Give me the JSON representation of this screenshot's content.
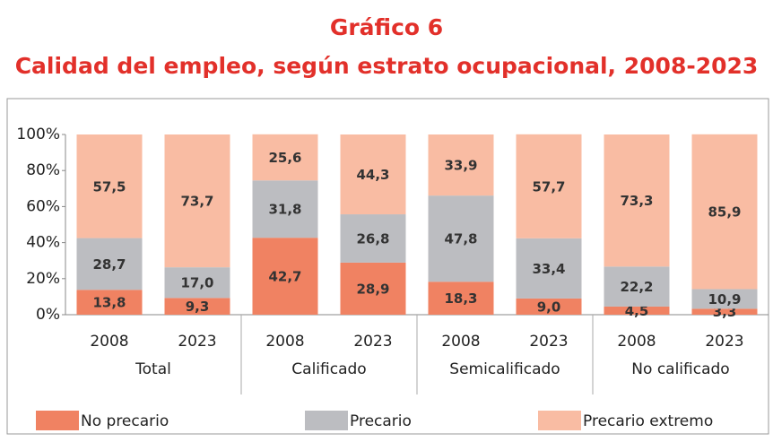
{
  "chart_data": {
    "type": "stacked_bar",
    "title": "Gráfico 6",
    "subtitle": "Calidad del empleo, según estrato ocupacional, 2008-2023",
    "categories": [
      "2008",
      "2023",
      "2008",
      "2023",
      "2008",
      "2023",
      "2008",
      "2023"
    ],
    "groups": [
      "Total",
      "Calificado",
      "Semicalificado",
      "No calificado"
    ],
    "series": [
      {
        "name": "No precario",
        "color": "#f08262",
        "values": [
          13.8,
          9.3,
          42.7,
          28.9,
          18.3,
          9.0,
          4.5,
          3.3
        ],
        "value_labels": [
          "13,8",
          "9,3",
          "42,7",
          "28,9",
          "18,3",
          "9,0",
          "4,5",
          "3,3"
        ]
      },
      {
        "name": "Precario",
        "color": "#bcbdc1",
        "values": [
          28.7,
          17.0,
          31.8,
          26.8,
          47.8,
          33.4,
          22.2,
          10.9
        ],
        "value_labels": [
          "28,7",
          "17,0",
          "31,8",
          "26,8",
          "47,8",
          "33,4",
          "22,2",
          "10,9"
        ]
      },
      {
        "name": "Precario extremo",
        "color": "#f9bca3",
        "values": [
          57.5,
          73.7,
          25.6,
          44.3,
          33.9,
          57.7,
          73.3,
          85.9
        ],
        "value_labels": [
          "57,5",
          "73,7",
          "25,6",
          "44,3",
          "33,9",
          "57,7",
          "73,3",
          "85,9"
        ]
      }
    ],
    "ylim": [
      0,
      100
    ],
    "yticks": [
      {
        "value": 0,
        "label": "0%"
      },
      {
        "value": 20,
        "label": "20%"
      },
      {
        "value": 40,
        "label": "40%"
      },
      {
        "value": 60,
        "label": "60%"
      },
      {
        "value": 80,
        "label": "80%"
      },
      {
        "value": 100,
        "label": "100%"
      }
    ],
    "legend": "bottom"
  }
}
